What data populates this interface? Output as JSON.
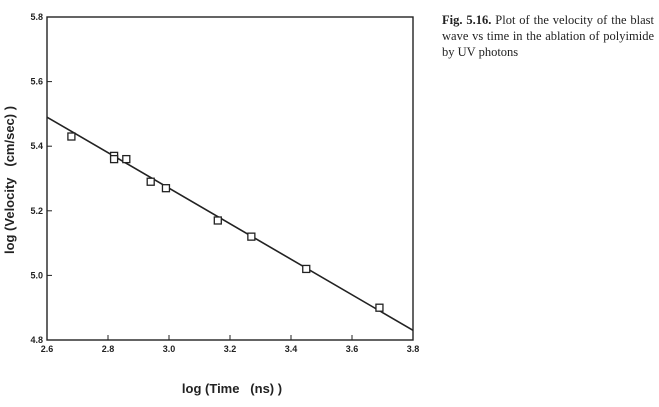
{
  "caption": {
    "label": "Fig. 5.16.",
    "text": "Plot of the velocity of the blast wave vs time in the ablation of polyimide by UV photons"
  },
  "chart_data": {
    "type": "scatter",
    "title": "",
    "xlabel": "log (Time   (ns) )",
    "ylabel": "log (Velocity   (cm/sec) )",
    "xlim": [
      2.6,
      3.8
    ],
    "ylim": [
      4.8,
      5.8
    ],
    "x_ticks": [
      "2.6",
      "2.8",
      "3.0",
      "3.2",
      "3.4",
      "3.6",
      "3.8"
    ],
    "y_ticks": [
      "4.8",
      "5.0",
      "5.2",
      "5.4",
      "5.6",
      "5.8"
    ],
    "grid": false,
    "marker": "open-square",
    "points": [
      {
        "x": 2.68,
        "y": 5.43
      },
      {
        "x": 2.82,
        "y": 5.37
      },
      {
        "x": 2.82,
        "y": 5.36
      },
      {
        "x": 2.86,
        "y": 5.36
      },
      {
        "x": 2.94,
        "y": 5.29
      },
      {
        "x": 2.99,
        "y": 5.27
      },
      {
        "x": 3.16,
        "y": 5.17
      },
      {
        "x": 3.27,
        "y": 5.12
      },
      {
        "x": 3.45,
        "y": 5.02
      },
      {
        "x": 3.69,
        "y": 4.9
      }
    ],
    "fit_line": {
      "x": [
        2.6,
        3.8
      ],
      "y": [
        5.49,
        4.83
      ]
    }
  }
}
